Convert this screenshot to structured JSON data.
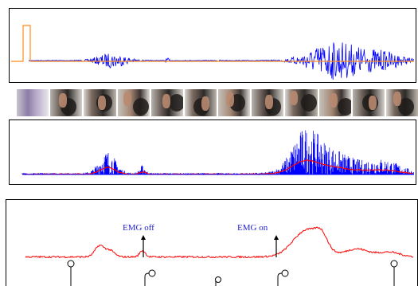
{
  "panels": {
    "raw_emg": {
      "signal_color": "#0000ff",
      "trigger_color": "#ff8c1a"
    },
    "photo_strip": {
      "frame_count": 12
    },
    "envelope": {
      "raw_color": "#0000ff",
      "envelope_color": "#ff0000"
    },
    "annotated": {
      "trace_color": "#ff0000",
      "emg_off_label": "EMG off",
      "emg_on_label": "EMG on",
      "marker_count": 6
    }
  }
}
